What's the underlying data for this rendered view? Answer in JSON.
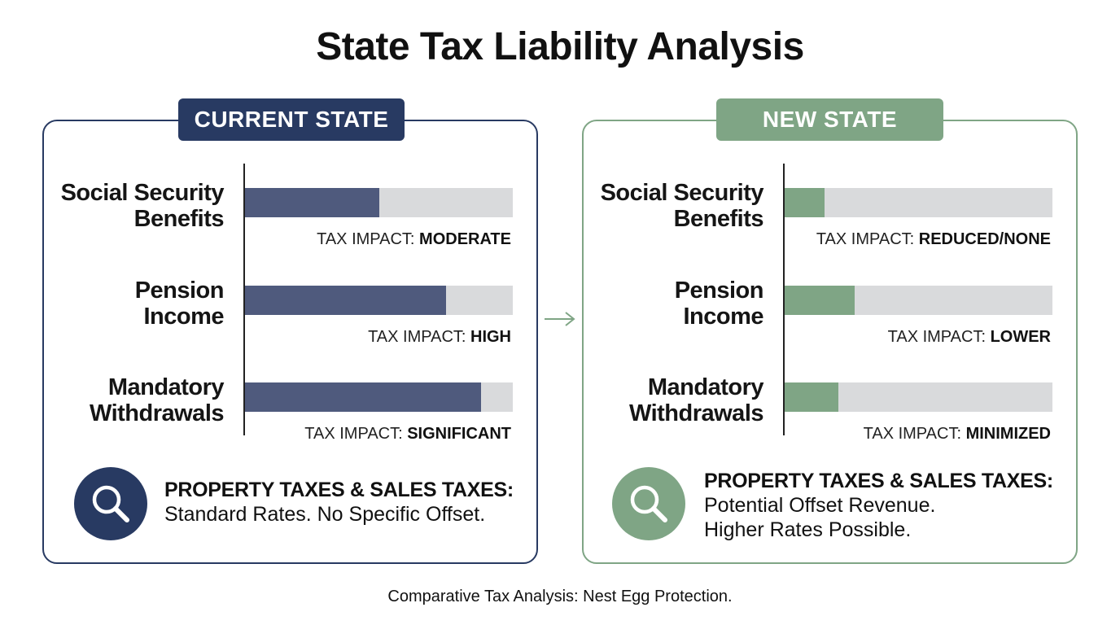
{
  "title": "State Tax Liability Analysis",
  "colors": {
    "current_accent": "#283a62",
    "current_fill": "#4f5a7d",
    "new_accent": "#7fa585",
    "new_fill": "#7fa585",
    "track": "#d9dadc"
  },
  "current": {
    "badge": "CURRENT STATE",
    "rows": [
      {
        "label": "Social Security\nBenefits",
        "impact_prefix": "TAX IMPACT: ",
        "impact_level": "MODERATE",
        "fill_fraction": 0.5
      },
      {
        "label": "Pension\nIncome",
        "impact_prefix": "TAX IMPACT: ",
        "impact_level": "HIGH",
        "fill_fraction": 0.75
      },
      {
        "label": "Mandatory\nWithdrawals",
        "impact_prefix": "TAX IMPACT: ",
        "impact_level": "SIGNIFICANT",
        "fill_fraction": 0.88
      }
    ],
    "note": {
      "icon": "magnifier-icon",
      "heading": "PROPERTY TAXES & SALES TAXES:",
      "lines": [
        "Standard Rates. No Specific Offset."
      ]
    }
  },
  "new": {
    "badge": "NEW STATE",
    "rows": [
      {
        "label": "Social Security\nBenefits",
        "impact_prefix": "TAX IMPACT: ",
        "impact_level": "REDUCED/NONE",
        "fill_fraction": 0.15
      },
      {
        "label": "Pension\nIncome",
        "impact_prefix": "TAX IMPACT: ",
        "impact_level": "LOWER",
        "fill_fraction": 0.26
      },
      {
        "label": "Mandatory\nWithdrawals",
        "impact_prefix": "TAX IMPACT: ",
        "impact_level": "MINIMIZED",
        "fill_fraction": 0.2
      }
    ],
    "note": {
      "icon": "magnifier-icon",
      "heading": "PROPERTY TAXES & SALES TAXES:",
      "lines": [
        "Potential Offset Revenue.",
        "Higher Rates Possible."
      ]
    }
  },
  "transition_icon": "arrow-right-icon",
  "caption": "Comparative Tax Analysis: Nest Egg Protection."
}
